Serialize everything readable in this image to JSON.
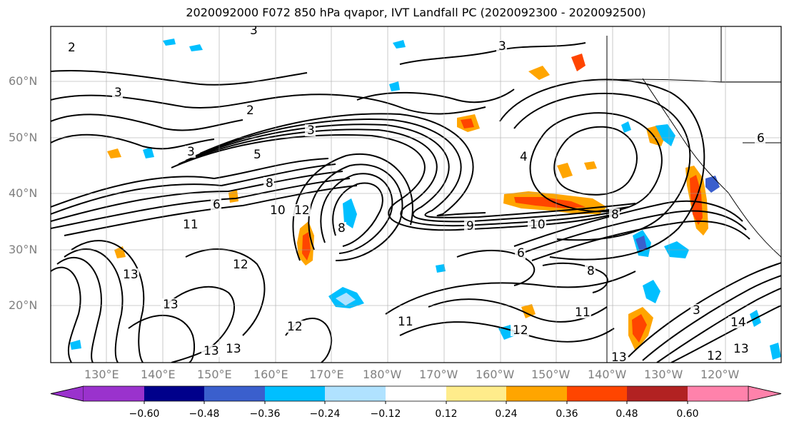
{
  "title": "2020092000 F072 850 hPa qvapor, IVT Landfall PC (2020092300 - 2020092500)",
  "lat_labels": [
    "60°N",
    "50°N",
    "40°N",
    "30°N",
    "20°N"
  ],
  "lon_labels": [
    "130°E",
    "140°E",
    "150°E",
    "160°E",
    "170°E",
    "180°W",
    "170°W",
    "160°W",
    "150°W",
    "140°W",
    "130°W",
    "120°W"
  ],
  "contour_labels": [
    "3",
    "2",
    "3",
    "2",
    "3",
    "3",
    "5",
    "4",
    "3",
    "6",
    "8",
    "10",
    "12",
    "11",
    "13",
    "13",
    "12",
    "13",
    "12",
    "13",
    "11",
    "12",
    "11",
    "13",
    "14",
    "13",
    "12",
    "8",
    "6",
    "8",
    "6",
    "10",
    "9",
    "8",
    "3"
  ],
  "colorbar": {
    "ticks": [
      "−0.60",
      "−0.48",
      "−0.36",
      "−0.24",
      "−0.12",
      "0.12",
      "0.24",
      "0.36",
      "0.48",
      "0.60"
    ],
    "colors": [
      "#9a32cd",
      "#00008b",
      "#3a5fcd",
      "#00bfff",
      "#b0e2ff",
      "#ffffff",
      "#ffec8b",
      "#ffa500",
      "#ff4500",
      "#b22222",
      "#ff82ab"
    ]
  }
}
